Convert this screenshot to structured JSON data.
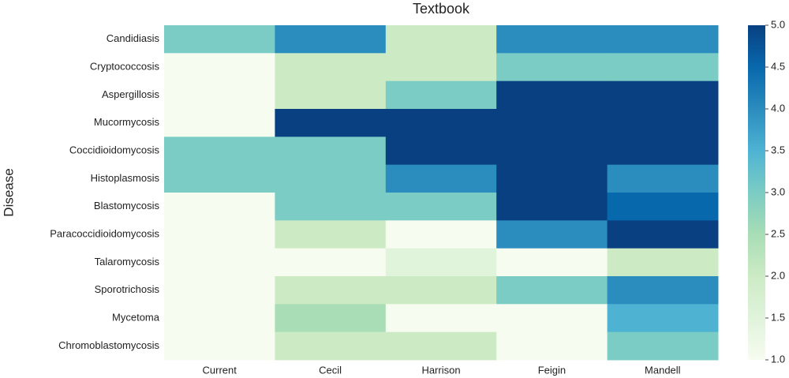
{
  "chart_data": {
    "type": "heatmap",
    "title": "Textbook",
    "ylabel": "Disease",
    "x_categories": [
      "Current",
      "Cecil",
      "Harrison",
      "Feigin",
      "Mandell"
    ],
    "y_categories": [
      "Candidiasis",
      "Cryptococcosis",
      "Aspergillosis",
      "Mucormycosis",
      "Coccidioidomycosis",
      "Histoplasmosis",
      "Blastomycosis",
      "Paracoccidioidomycosis",
      "Talaromycosis",
      "Sporotrichosis",
      "Mycetoma",
      "Chromoblastomycosis"
    ],
    "values": [
      [
        3,
        4,
        2,
        4,
        4
      ],
      [
        1,
        2,
        2,
        3,
        3
      ],
      [
        1,
        2,
        3,
        5,
        5
      ],
      [
        1,
        5,
        5,
        5,
        5
      ],
      [
        3,
        3,
        5,
        5,
        5
      ],
      [
        3,
        3,
        4,
        5,
        4
      ],
      [
        1,
        3,
        3,
        5,
        4.5
      ],
      [
        1,
        2,
        1,
        4,
        5
      ],
      [
        1,
        1,
        1.5,
        1,
        2
      ],
      [
        1,
        2,
        2,
        3,
        4
      ],
      [
        1,
        2.5,
        1,
        1,
        3.5
      ],
      [
        1,
        2,
        2,
        1,
        3
      ]
    ],
    "colormap": "GnBu",
    "clim": [
      1,
      5
    ],
    "cticks": [
      {
        "value": 1,
        "label": "1.0"
      },
      {
        "value": 1.5,
        "label": "1.5"
      },
      {
        "value": 2,
        "label": "2.0"
      },
      {
        "value": 2.5,
        "label": "2.5"
      },
      {
        "value": 3,
        "label": "3.0"
      },
      {
        "value": 3.5,
        "label": "3.5"
      },
      {
        "value": 4,
        "label": "4.0"
      },
      {
        "value": 4.5,
        "label": "4.5"
      },
      {
        "value": 5,
        "label": "5.0"
      }
    ]
  }
}
